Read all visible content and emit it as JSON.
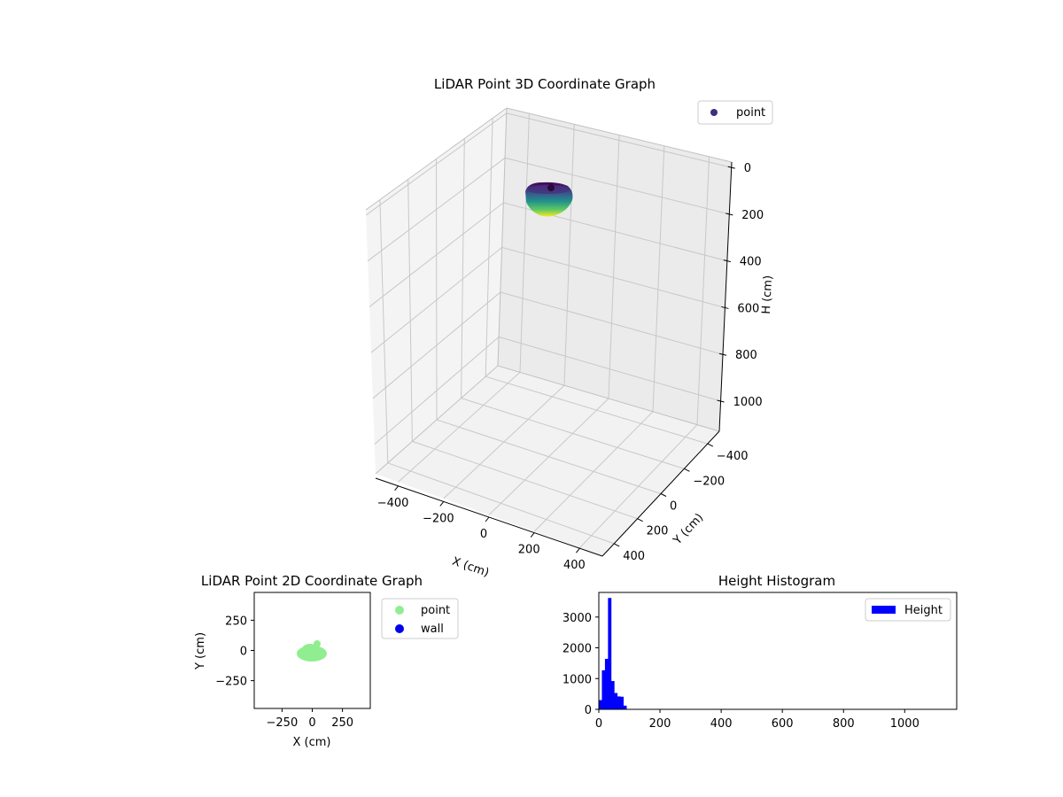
{
  "chart_data": [
    {
      "type": "scatter3d",
      "title": "LiDAR Point 3D Coordinate Graph",
      "xlabel": "X (cm)",
      "ylabel": "Y (cm)",
      "zlabel": "H (cm)",
      "xlim": [
        -500,
        500
      ],
      "ylim": [
        -500,
        500
      ],
      "zlim": [
        0,
        1100
      ],
      "x_ticks": [
        "−400",
        "−200",
        "0",
        "200",
        "400"
      ],
      "y_ticks": [
        "−400",
        "−200",
        "0",
        "200",
        "400"
      ],
      "z_ticks": [
        "0",
        "200",
        "400",
        "600",
        "800",
        "1000"
      ],
      "z_inverted": true,
      "colormap": "viridis",
      "series": [
        {
          "name": "point",
          "color": "#3b2f80",
          "cluster_center": [
            0,
            0
          ],
          "cluster_radius": 90,
          "height_range": [
            0,
            100
          ]
        }
      ],
      "legend_position": "top-right",
      "grid": true
    },
    {
      "type": "scatter",
      "title": "LiDAR Point 2D Coordinate Graph",
      "xlabel": "X (cm)",
      "ylabel": "Y (cm)",
      "xlim": [
        -480,
        480
      ],
      "ylim": [
        -480,
        480
      ],
      "x_ticks": [
        "−250",
        "0",
        "250"
      ],
      "y_ticks": [
        "−250",
        "0",
        "250"
      ],
      "series": [
        {
          "name": "point",
          "color": "#90ee90",
          "cluster_center": [
            0,
            0
          ],
          "cluster_radius": 90
        },
        {
          "name": "wall",
          "color": "#0000ee"
        }
      ],
      "legend_position": "outside-right",
      "grid": false
    },
    {
      "type": "bar",
      "title": "Height Histogram",
      "xlim": [
        0,
        1170
      ],
      "ylim": [
        0,
        3800
      ],
      "x_ticks": [
        "0",
        "200",
        "400",
        "600",
        "800",
        "1000"
      ],
      "y_ticks": [
        "0",
        "1000",
        "2000",
        "3000"
      ],
      "bin_width": 10,
      "series": [
        {
          "name": "Height",
          "color": "#0000ff",
          "bins": [
            {
              "x": 0,
              "value": 300
            },
            {
              "x": 10,
              "value": 1270
            },
            {
              "x": 20,
              "value": 1640
            },
            {
              "x": 30,
              "value": 3620
            },
            {
              "x": 40,
              "value": 920
            },
            {
              "x": 50,
              "value": 530
            },
            {
              "x": 60,
              "value": 420
            },
            {
              "x": 70,
              "value": 410
            },
            {
              "x": 80,
              "value": 120
            }
          ]
        }
      ],
      "legend_position": "top-right",
      "grid": false
    }
  ]
}
